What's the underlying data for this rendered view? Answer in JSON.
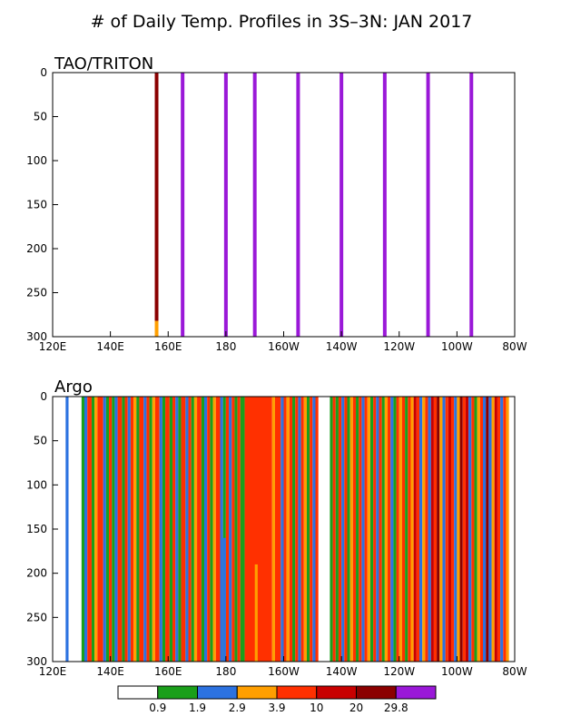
{
  "title": "# of Daily Temp. Profiles in 3S–3N: JAN 2017",
  "colors": {
    "bins": [
      "#ffffff",
      "#1a9f1a",
      "#2c72e0",
      "#ff9f00",
      "#ff3000",
      "#c80000",
      "#8b0000",
      "#9a18d8"
    ]
  },
  "colorbar": {
    "labels": [
      "0.9",
      "1.9",
      "2.9",
      "3.9",
      "10",
      "20",
      "29.8"
    ]
  },
  "chart_data": [
    {
      "type": "heatmap",
      "panel_title": "TAO/TRITON",
      "xlim": [
        120,
        280
      ],
      "ylim": [
        0,
        300
      ],
      "y_reversed": true,
      "x_ticks": [
        "120E",
        "140E",
        "160E",
        "180",
        "160W",
        "140W",
        "120W",
        "100W",
        "80W"
      ],
      "y_ticks": [
        "0",
        "50",
        "100",
        "150",
        "200",
        "250",
        "300"
      ],
      "columns": [
        {
          "lon": 156,
          "segments": [
            {
              "top": 0,
              "bottom": 282,
              "bin": 6
            },
            {
              "top": 282,
              "bottom": 300,
              "bin": 3
            }
          ]
        },
        {
          "lon": 165,
          "segments": [
            {
              "top": 0,
              "bottom": 300,
              "bin": 7
            }
          ]
        },
        {
          "lon": 180,
          "segments": [
            {
              "top": 0,
              "bottom": 300,
              "bin": 7
            }
          ]
        },
        {
          "lon": 190,
          "segments": [
            {
              "top": 0,
              "bottom": 300,
              "bin": 7
            }
          ]
        },
        {
          "lon": 205,
          "segments": [
            {
              "top": 0,
              "bottom": 300,
              "bin": 7
            }
          ]
        },
        {
          "lon": 220,
          "segments": [
            {
              "top": 0,
              "bottom": 300,
              "bin": 7
            }
          ]
        },
        {
          "lon": 235,
          "segments": [
            {
              "top": 0,
              "bottom": 300,
              "bin": 7
            }
          ]
        },
        {
          "lon": 250,
          "segments": [
            {
              "top": 0,
              "bottom": 300,
              "bin": 7
            }
          ]
        },
        {
          "lon": 265,
          "segments": [
            {
              "top": 0,
              "bottom": 300,
              "bin": 7
            }
          ]
        }
      ]
    },
    {
      "type": "heatmap",
      "panel_title": "Argo",
      "xlim": [
        120,
        280
      ],
      "ylim": [
        0,
        300
      ],
      "y_reversed": true,
      "x_ticks": [
        "120E",
        "140E",
        "160E",
        "180",
        "160W",
        "140W",
        "120W",
        "100W",
        "80W"
      ],
      "y_ticks": [
        "0",
        "50",
        "100",
        "150",
        "200",
        "250",
        "300"
      ],
      "cells": [
        [
          124.5,
          125.5,
          2
        ],
        [
          130.0,
          131.0,
          1
        ],
        [
          131.0,
          132.0,
          2
        ],
        [
          132.0,
          133.5,
          4
        ],
        [
          133.5,
          134.5,
          1
        ],
        [
          134.5,
          135.5,
          3
        ],
        [
          135.5,
          137.5,
          4
        ],
        [
          137.5,
          138.5,
          2
        ],
        [
          138.5,
          139.5,
          1
        ],
        [
          139.5,
          140.5,
          4
        ],
        [
          140.5,
          141.5,
          1
        ],
        [
          141.5,
          142.5,
          2
        ],
        [
          142.5,
          144.0,
          4
        ],
        [
          144.0,
          145.0,
          1
        ],
        [
          145.0,
          146.0,
          4
        ],
        [
          146.0,
          147.0,
          2
        ],
        [
          147.0,
          148.0,
          4
        ],
        [
          148.0,
          149.0,
          3
        ],
        [
          149.0,
          150.0,
          1
        ],
        [
          150.0,
          151.5,
          4
        ],
        [
          151.5,
          152.5,
          2
        ],
        [
          152.5,
          153.5,
          4
        ],
        [
          153.5,
          154.5,
          1
        ],
        [
          154.5,
          155.5,
          3
        ],
        [
          155.5,
          157.0,
          4
        ],
        [
          157.0,
          158.0,
          2
        ],
        [
          158.0,
          159.0,
          1
        ],
        [
          159.0,
          160.5,
          4
        ],
        [
          160.5,
          161.5,
          1
        ],
        [
          161.5,
          162.5,
          4
        ],
        [
          162.5,
          163.5,
          2
        ],
        [
          163.5,
          164.5,
          1
        ],
        [
          164.5,
          166.0,
          4
        ],
        [
          166.0,
          167.0,
          2
        ],
        [
          167.0,
          168.0,
          4
        ],
        [
          168.0,
          169.0,
          1
        ],
        [
          169.0,
          170.0,
          3
        ],
        [
          170.0,
          171.5,
          4
        ],
        [
          171.5,
          172.5,
          1
        ],
        [
          172.5,
          173.5,
          2
        ],
        [
          173.5,
          174.5,
          4
        ],
        [
          174.5,
          175.5,
          1
        ],
        [
          175.5,
          176.5,
          3
        ],
        [
          176.5,
          178.0,
          4
        ],
        [
          178.0,
          179.0,
          2
        ],
        [
          179.0,
          180.0,
          1
        ],
        [
          180.0,
          181.0,
          4
        ],
        [
          181.0,
          182.0,
          2
        ],
        [
          182.0,
          183.0,
          4
        ],
        [
          183.0,
          184.0,
          1
        ],
        [
          184.0,
          185.0,
          4
        ],
        [
          185.0,
          186.5,
          1
        ],
        [
          186.5,
          196.0,
          4
        ],
        [
          196.0,
          197.0,
          3
        ],
        [
          197.0,
          199.0,
          4
        ],
        [
          199.0,
          200.0,
          2
        ],
        [
          200.0,
          201.0,
          4
        ],
        [
          201.0,
          202.0,
          3
        ],
        [
          202.0,
          203.0,
          4
        ],
        [
          203.0,
          204.0,
          1
        ],
        [
          204.0,
          205.0,
          4
        ],
        [
          205.0,
          206.0,
          2
        ],
        [
          206.0,
          207.0,
          4
        ],
        [
          207.0,
          208.0,
          3
        ],
        [
          208.0,
          209.0,
          1
        ],
        [
          209.0,
          210.0,
          4
        ],
        [
          210.0,
          211.0,
          2
        ],
        [
          211.0,
          212.0,
          4
        ],
        [
          216.0,
          217.0,
          1
        ],
        [
          217.0,
          218.0,
          4
        ],
        [
          218.0,
          219.0,
          1
        ],
        [
          219.0,
          220.0,
          4
        ],
        [
          220.0,
          221.0,
          2
        ],
        [
          221.0,
          222.0,
          4
        ],
        [
          222.0,
          223.0,
          1
        ],
        [
          223.0,
          224.0,
          3
        ],
        [
          224.0,
          225.0,
          4
        ],
        [
          225.0,
          226.0,
          1
        ],
        [
          226.0,
          227.0,
          4
        ],
        [
          227.0,
          228.0,
          2
        ],
        [
          228.0,
          229.0,
          4
        ],
        [
          229.0,
          230.0,
          3
        ],
        [
          230.0,
          231.0,
          1
        ],
        [
          231.0,
          232.0,
          4
        ],
        [
          232.0,
          233.0,
          2
        ],
        [
          233.0,
          234.0,
          4
        ],
        [
          234.0,
          235.0,
          1
        ],
        [
          235.0,
          236.0,
          3
        ],
        [
          236.0,
          237.0,
          4
        ],
        [
          237.0,
          238.0,
          2
        ],
        [
          238.0,
          239.0,
          1
        ],
        [
          239.0,
          240.0,
          4
        ],
        [
          240.0,
          241.0,
          3
        ],
        [
          241.0,
          242.0,
          4
        ],
        [
          242.0,
          243.0,
          1
        ],
        [
          243.0,
          244.0,
          4
        ],
        [
          244.0,
          245.0,
          3
        ],
        [
          245.0,
          246.0,
          5
        ],
        [
          246.0,
          247.0,
          4
        ],
        [
          247.0,
          248.0,
          2
        ],
        [
          248.0,
          249.0,
          3
        ],
        [
          249.0,
          250.0,
          4
        ],
        [
          250.0,
          251.0,
          2
        ],
        [
          251.0,
          252.0,
          5
        ],
        [
          252.0,
          253.0,
          4
        ],
        [
          253.0,
          254.0,
          6
        ],
        [
          254.0,
          255.0,
          3
        ],
        [
          255.0,
          256.0,
          2
        ],
        [
          256.0,
          257.0,
          4
        ],
        [
          257.0,
          258.0,
          5
        ],
        [
          258.0,
          259.0,
          4
        ],
        [
          259.0,
          260.0,
          2
        ],
        [
          260.0,
          261.0,
          3
        ],
        [
          261.0,
          262.0,
          6
        ],
        [
          262.0,
          263.0,
          4
        ],
        [
          263.0,
          264.0,
          5
        ],
        [
          264.0,
          265.0,
          2
        ],
        [
          265.0,
          266.0,
          4
        ],
        [
          266.0,
          267.0,
          1
        ],
        [
          267.0,
          268.0,
          3
        ],
        [
          268.0,
          269.0,
          4
        ],
        [
          269.0,
          270.0,
          2
        ],
        [
          270.0,
          271.0,
          6
        ],
        [
          271.0,
          272.0,
          2
        ],
        [
          272.0,
          273.0,
          3
        ],
        [
          273.0,
          274.0,
          5
        ],
        [
          274.0,
          275.0,
          4
        ],
        [
          275.0,
          276.0,
          2
        ],
        [
          276.0,
          277.0,
          4
        ],
        [
          277.0,
          278.0,
          3
        ]
      ],
      "overlays": [
        [
          179.0,
          180.0,
          160,
          300,
          2
        ],
        [
          190.0,
          191.0,
          190,
          300,
          3
        ]
      ]
    }
  ]
}
